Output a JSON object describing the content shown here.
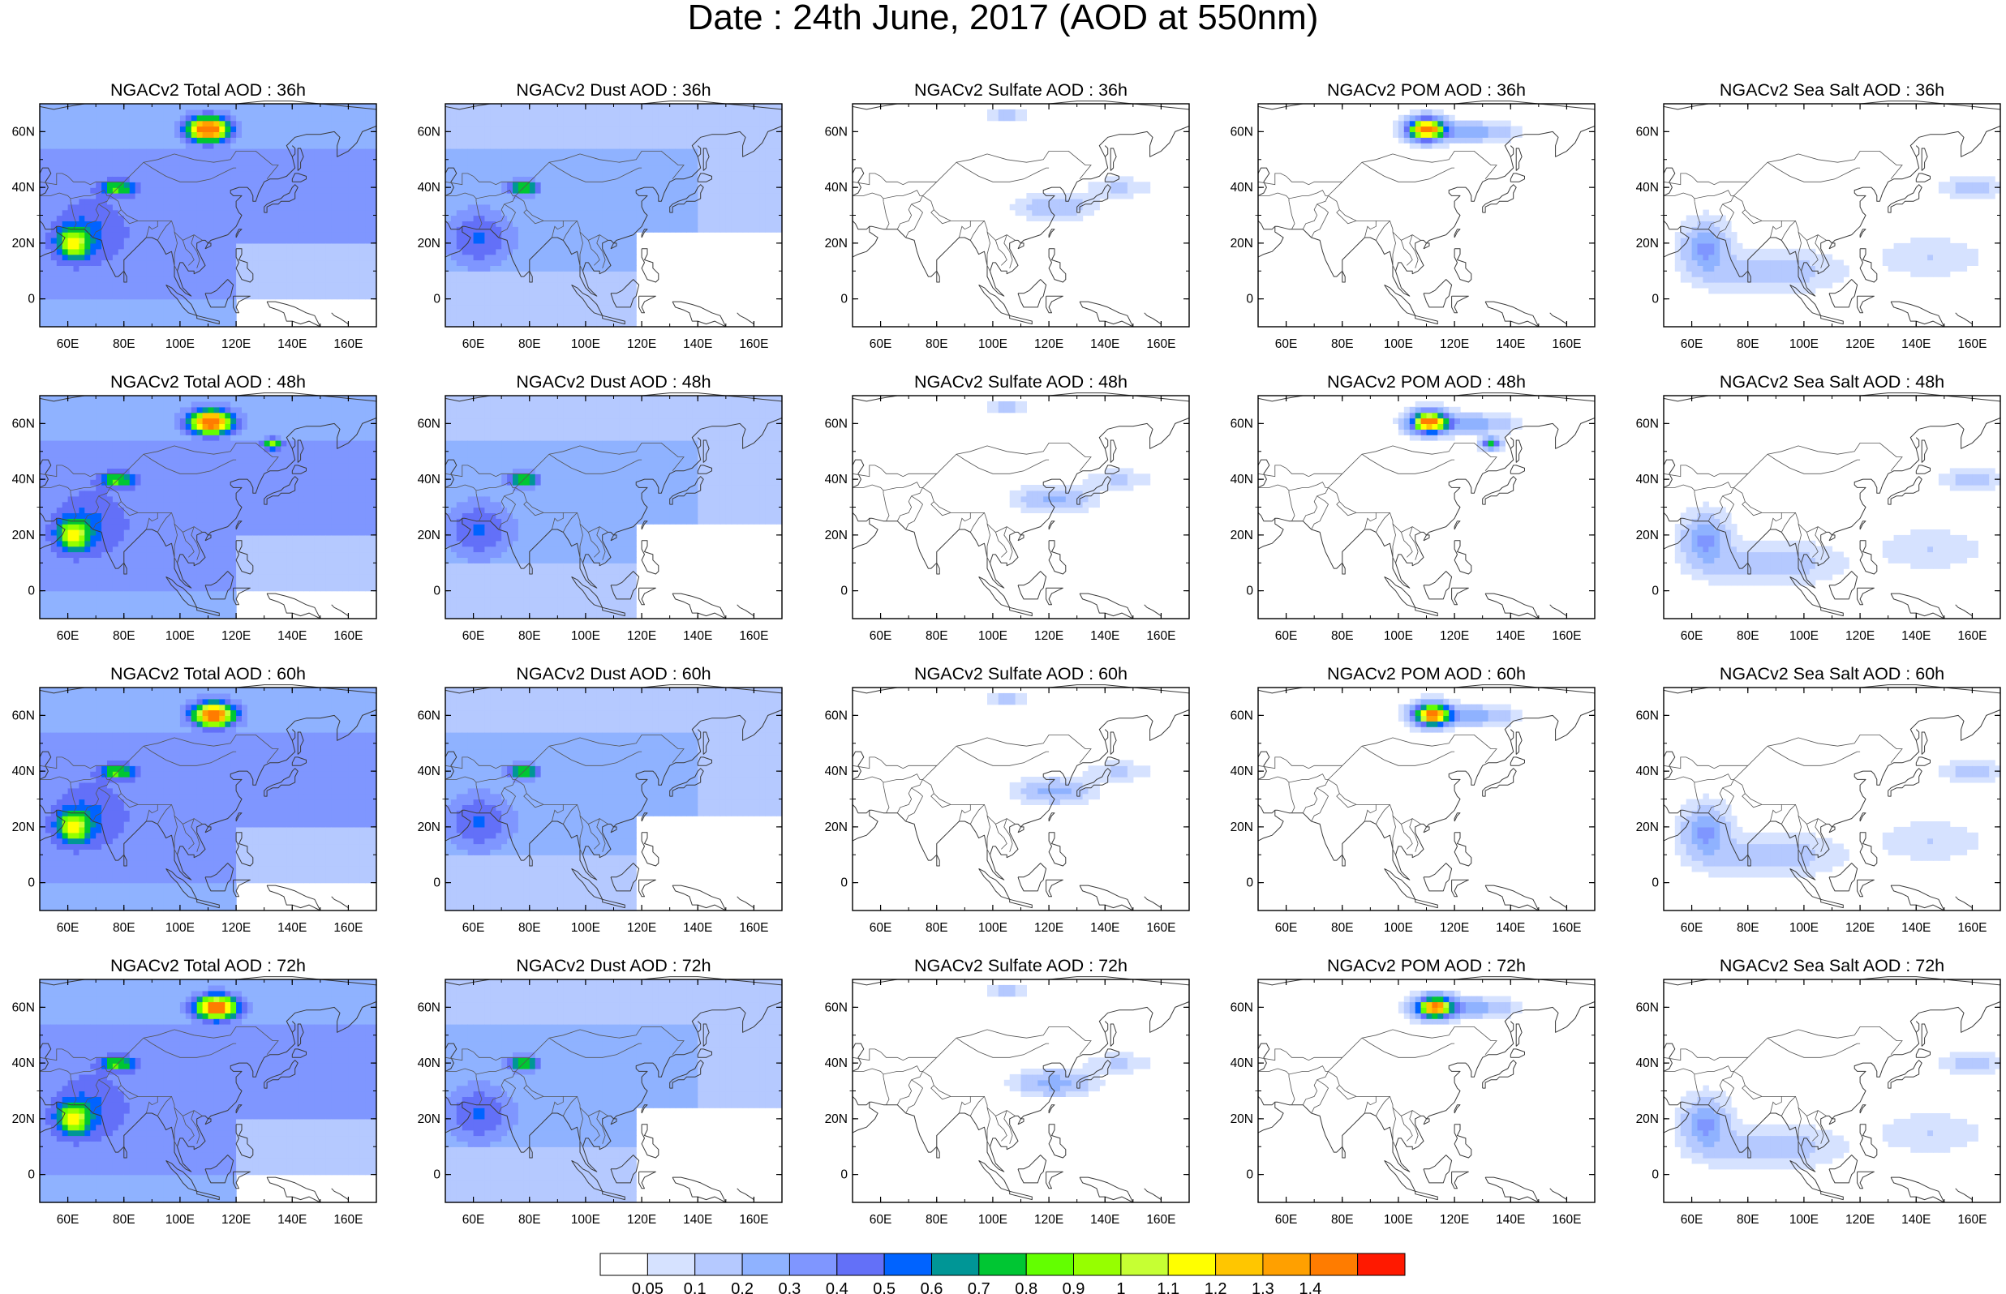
{
  "title": "Date : 24th June, 2017 (AOD at 550nm)",
  "panel_titles": [
    [
      "NGACv2 Total AOD : 36h",
      "NGACv2 Dust AOD : 36h",
      "NGACv2 Sulfate AOD : 36h",
      "NGACv2 POM AOD : 36h",
      "NGACv2 Sea Salt AOD : 36h"
    ],
    [
      "NGACv2 Total AOD : 48h",
      "NGACv2 Dust AOD : 48h",
      "NGACv2 Sulfate AOD : 48h",
      "NGACv2 POM AOD : 48h",
      "NGACv2 Sea Salt AOD : 48h"
    ],
    [
      "NGACv2 Total AOD : 60h",
      "NGACv2 Dust AOD : 60h",
      "NGACv2 Sulfate AOD : 60h",
      "NGACv2 POM AOD : 60h",
      "NGACv2 Sea Salt AOD : 60h"
    ],
    [
      "NGACv2 Total AOD : 72h",
      "NGACv2 Dust AOD : 72h",
      "NGACv2 Sulfate AOD : 72h",
      "NGACv2 POM AOD : 72h",
      "NGACv2 Sea Salt  AOD : 72h"
    ]
  ],
  "x_tick_labels": [
    "60E",
    "80E",
    "100E",
    "120E",
    "140E",
    "160E"
  ],
  "y_tick_labels": [
    "60N",
    "40N",
    "20N",
    "0"
  ],
  "map_extent": {
    "lon": [
      50,
      170
    ],
    "lat": [
      -10,
      70
    ]
  },
  "x_tick_values": [
    60,
    80,
    100,
    120,
    140,
    160
  ],
  "y_tick_values": [
    60,
    40,
    20,
    0
  ],
  "colorbar": {
    "labels": [
      "0.05",
      "0.1",
      "0.2",
      "0.3",
      "0.4",
      "0.5",
      "0.6",
      "0.7",
      "0.8",
      "0.9",
      "1",
      "1.1",
      "1.2",
      "1.3",
      "1.4"
    ],
    "colors": [
      "#ffffff",
      "#d6e2ff",
      "#b5c9ff",
      "#8fb2ff",
      "#7f96ff",
      "#6370f8",
      "#0063ff",
      "#009696",
      "#00c633",
      "#63ff00",
      "#96ff00",
      "#c6ff33",
      "#ffff00",
      "#ffc600",
      "#ffa000",
      "#ff7c00",
      "#ff1900"
    ]
  }
}
